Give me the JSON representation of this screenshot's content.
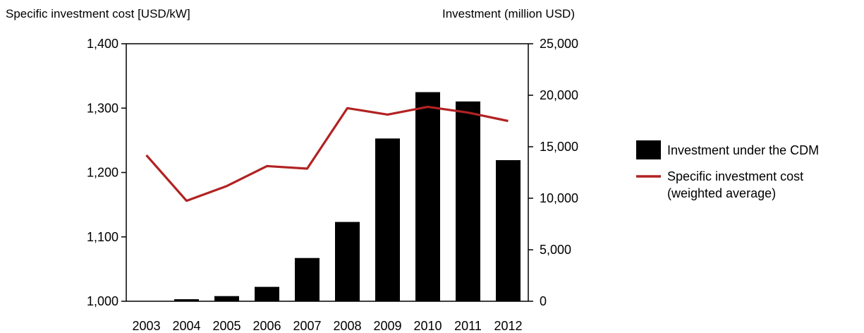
{
  "chart_data": {
    "type": "bar+line",
    "categories": [
      "2003",
      "2004",
      "2005",
      "2006",
      "2007",
      "2008",
      "2009",
      "2010",
      "2011",
      "2012"
    ],
    "series": [
      {
        "name": "Investment under the CDM",
        "type": "bar",
        "axis": "right",
        "values": [
          0,
          200,
          500,
          1400,
          4200,
          7700,
          15800,
          20300,
          19400,
          13700
        ],
        "color": "#000000"
      },
      {
        "name": "Specific investment cost (weighted average)",
        "type": "line",
        "axis": "left",
        "values": [
          1227,
          1156,
          1179,
          1210,
          1206,
          1300,
          1290,
          1302,
          1293,
          1280
        ],
        "color": "#b22222"
      }
    ],
    "left_axis": {
      "label": "Specific investment cost [USD/kW]",
      "range": [
        1000,
        1400
      ],
      "ticks": [
        1000,
        1100,
        1200,
        1300,
        1400
      ],
      "tick_labels": [
        "1,000",
        "1,100",
        "1,200",
        "1,300",
        "1,400"
      ]
    },
    "right_axis": {
      "label": "Investment (million USD)",
      "range": [
        0,
        25000
      ],
      "ticks": [
        0,
        5000,
        10000,
        15000,
        20000,
        25000
      ],
      "tick_labels": [
        "0",
        "5,000",
        "10,000",
        "15,000",
        "20,000",
        "25,000"
      ]
    },
    "legend": {
      "placement": "right",
      "items": [
        {
          "label_lines": [
            "Investment under the CDM"
          ],
          "swatch": "box",
          "color": "#000000"
        },
        {
          "label_lines": [
            "Specific investment cost",
            "(weighted average)"
          ],
          "swatch": "line",
          "color": "#b22222"
        }
      ]
    },
    "grid": false
  }
}
